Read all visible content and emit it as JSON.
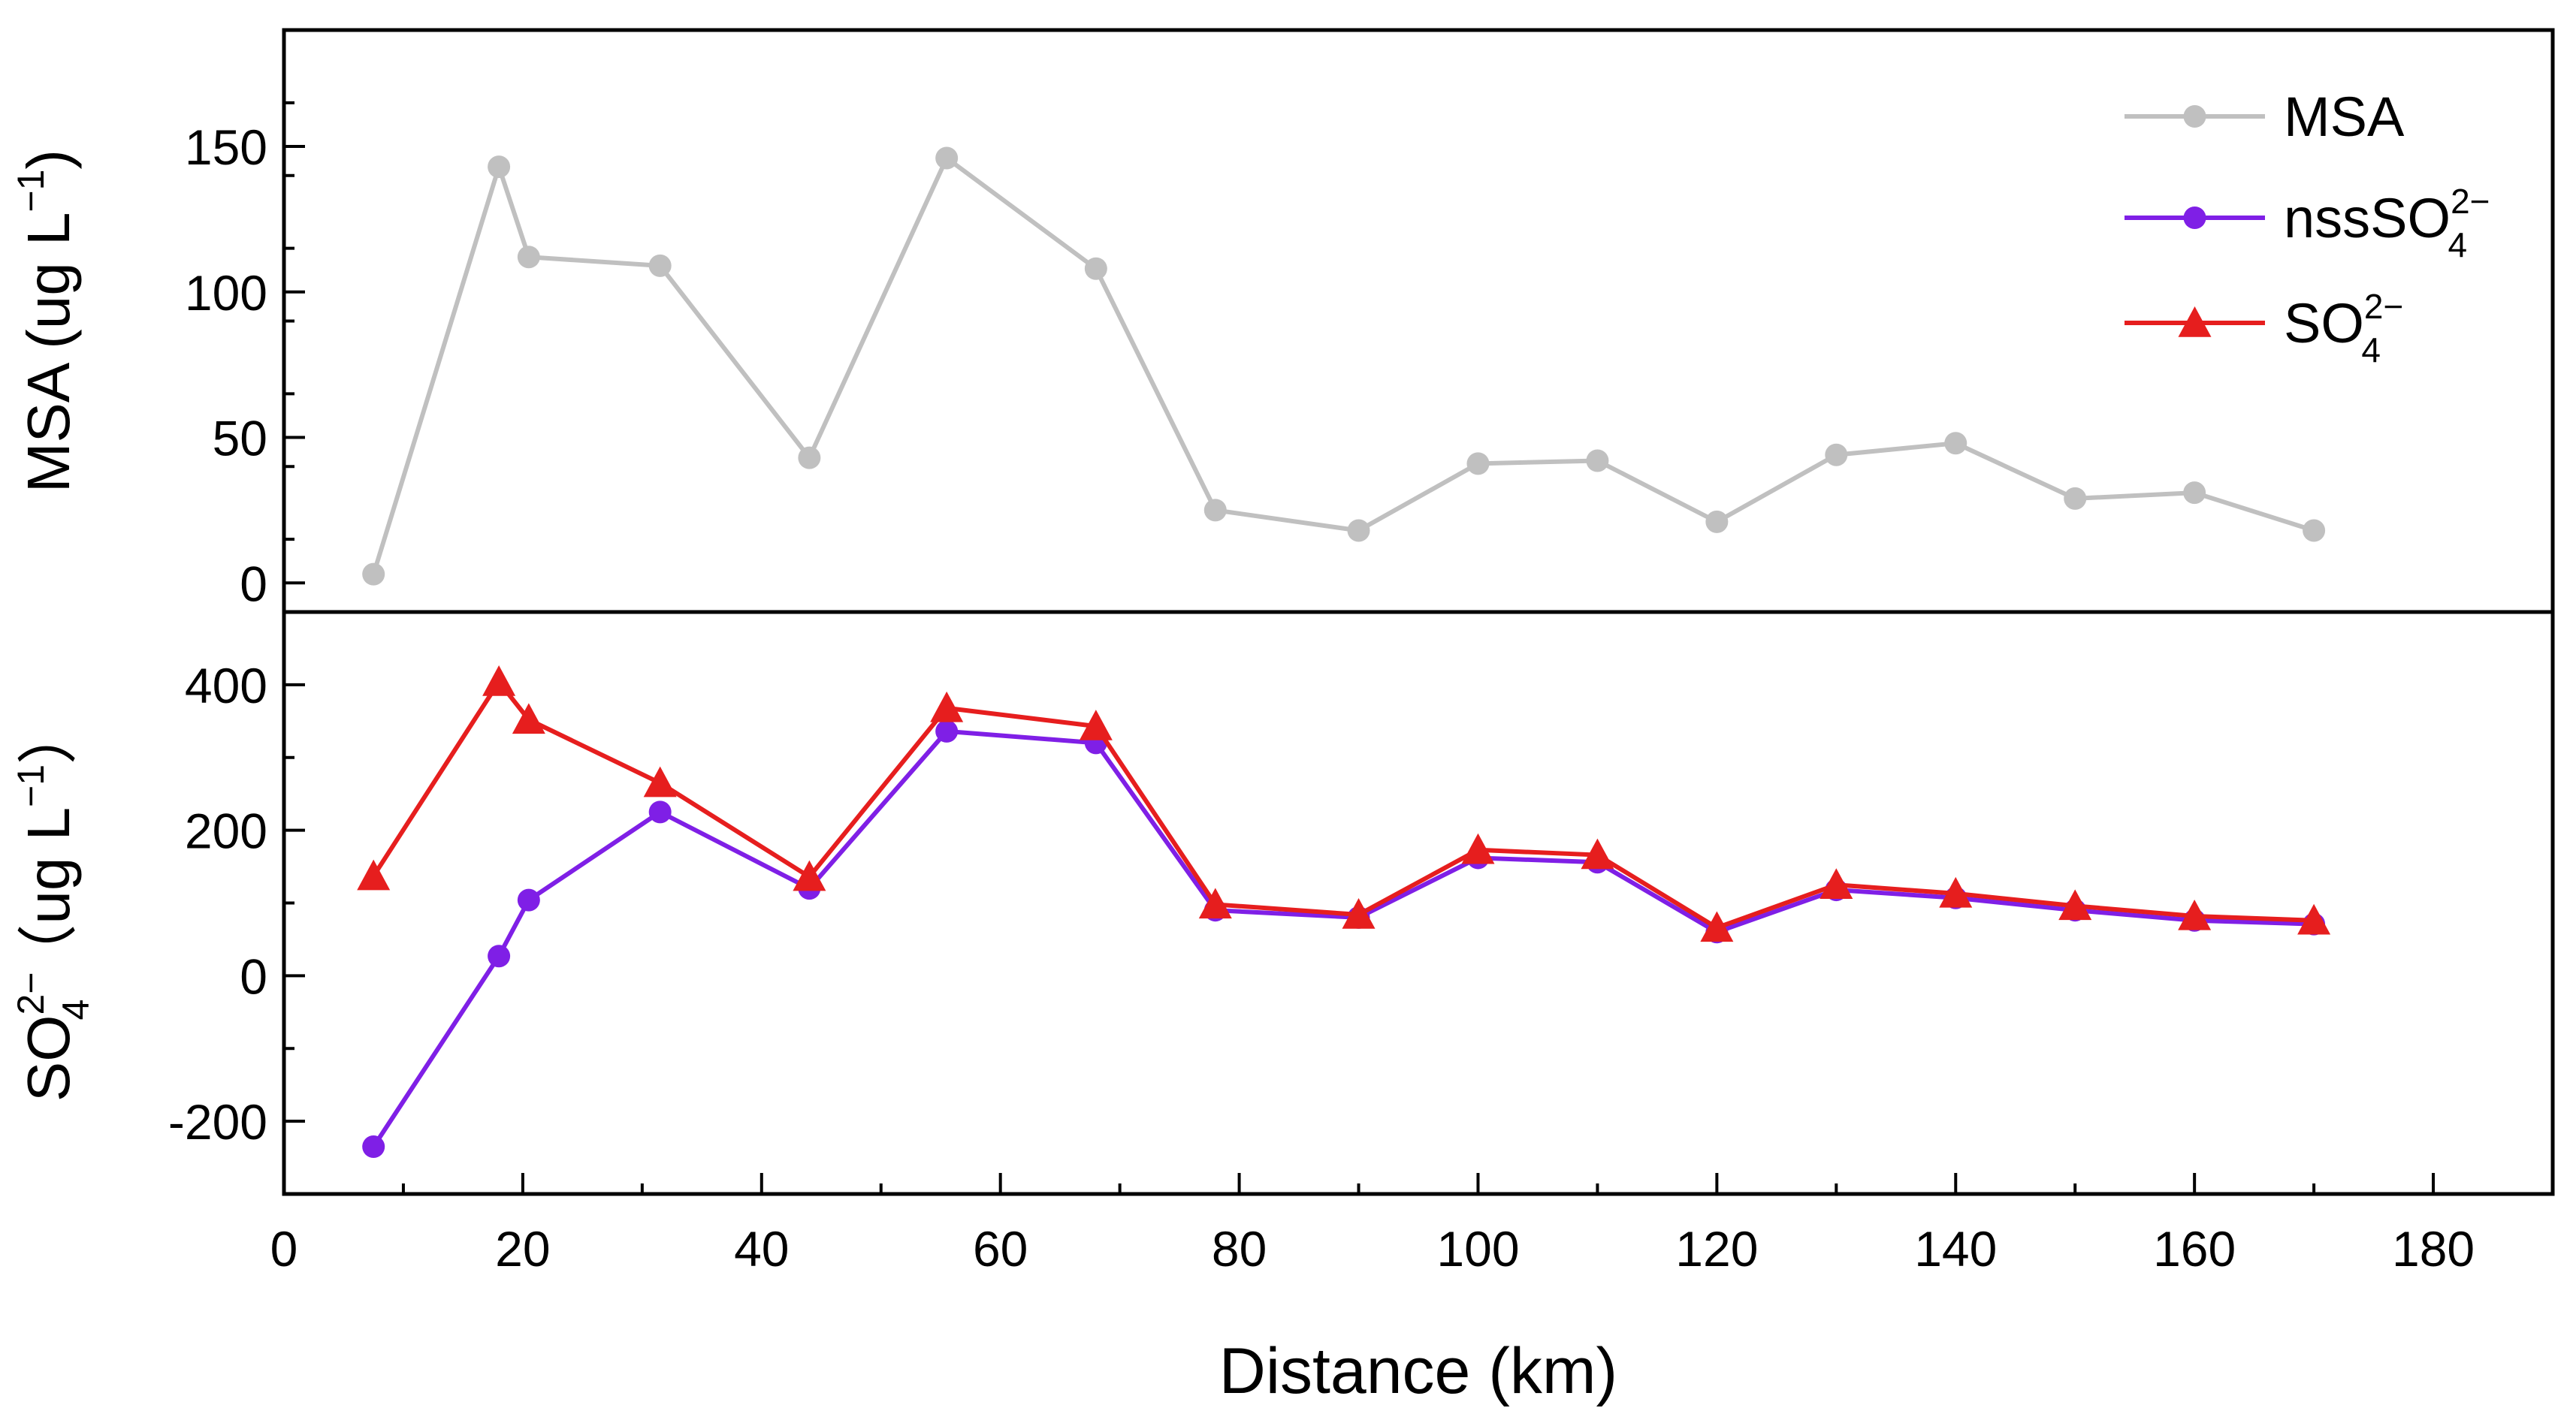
{
  "chart_data": [
    {
      "type": "line",
      "panel": "top",
      "ylabel": "MSA (ug L",
      "ylabel_sup": "−1",
      "ylabel_close": ")",
      "ylim": [
        -10,
        190
      ],
      "yticks": [
        0,
        50,
        100,
        150
      ],
      "x": [
        7.5,
        18,
        20.5,
        31.5,
        44,
        55.5,
        68,
        78,
        90,
        100,
        110,
        120,
        130,
        140,
        150,
        160,
        170
      ],
      "series": [
        {
          "name": "MSA",
          "color": "#c0c0c0",
          "marker": "circle",
          "values": [
            3,
            143,
            112,
            109,
            43,
            146,
            108,
            25,
            18,
            41,
            42,
            21,
            44,
            48,
            29,
            31,
            18
          ]
        }
      ]
    },
    {
      "type": "line",
      "panel": "bottom",
      "ylabel_main": "SO",
      "ylabel_sup": "2−",
      "ylabel_sub": "4",
      "ylabel_rest": "（ug L",
      "ylabel_rest_sup": "−1",
      "ylabel_close": "）",
      "ylim": [
        -300,
        500
      ],
      "yticks": [
        -200,
        0,
        200,
        400
      ],
      "x": [
        7.5,
        18,
        20.5,
        31.5,
        44,
        55.5,
        68,
        78,
        90,
        100,
        110,
        120,
        130,
        140,
        150,
        160,
        170
      ],
      "series": [
        {
          "name": "nssSO",
          "color": "#7f1fe6",
          "marker": "circle",
          "values": [
            -235,
            27,
            104,
            225,
            120,
            336,
            320,
            90,
            80,
            162,
            156,
            60,
            118,
            107,
            90,
            76,
            71
          ]
        },
        {
          "name": "SO",
          "color": "#e61e1e",
          "marker": "triangle",
          "values": [
            137,
            404,
            352,
            265,
            136,
            368,
            343,
            98,
            84,
            173,
            166,
            66,
            125,
            113,
            96,
            82,
            76
          ]
        }
      ]
    }
  ],
  "xaxis": {
    "label": "Distance (km)",
    "xlim": [
      0,
      190
    ],
    "ticks": [
      0,
      20,
      40,
      60,
      80,
      100,
      120,
      140,
      160,
      180
    ]
  },
  "legend": {
    "placement": "top-right",
    "items": [
      {
        "main": "MSA",
        "sup": "",
        "sub": ""
      },
      {
        "main": "nssSO",
        "sup": "2−",
        "sub": "4"
      },
      {
        "main": "SO",
        "sup": "2−",
        "sub": "4"
      }
    ]
  }
}
